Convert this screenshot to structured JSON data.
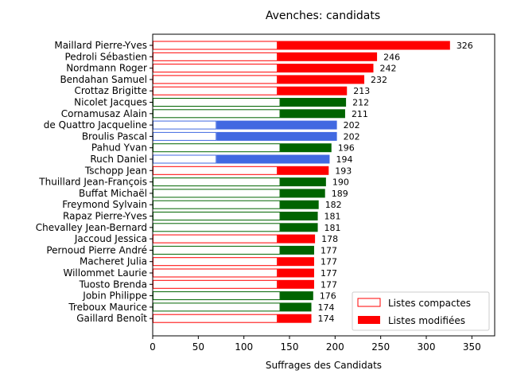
{
  "chart_data": {
    "type": "bar",
    "orientation": "horizontal-stacked",
    "title": "Avenches: candidats",
    "xlabel": "Suffrages des Candidats",
    "ylabel": "",
    "xlim": [
      0,
      375
    ],
    "x_ticks": [
      0,
      50,
      100,
      150,
      200,
      250,
      300,
      350
    ],
    "grid": false,
    "legend_position": "lower-right",
    "legend": [
      {
        "label": "Listes compactes",
        "style": "outline",
        "color": "#ff0000"
      },
      {
        "label": "Listes modifiées",
        "style": "filled",
        "color": "#ff0000"
      }
    ],
    "candidates": [
      {
        "name": "Maillard Pierre-Yves",
        "compact": 137,
        "total": 326,
        "color": "#ff0000"
      },
      {
        "name": "Pedroli Sébastien",
        "compact": 137,
        "total": 246,
        "color": "#ff0000"
      },
      {
        "name": "Nordmann Roger",
        "compact": 137,
        "total": 242,
        "color": "#ff0000"
      },
      {
        "name": "Bendahan Samuel",
        "compact": 137,
        "total": 232,
        "color": "#ff0000"
      },
      {
        "name": "Crottaz Brigitte",
        "compact": 137,
        "total": 213,
        "color": "#ff0000"
      },
      {
        "name": "Nicolet Jacques",
        "compact": 140,
        "total": 212,
        "color": "#006400"
      },
      {
        "name": "Cornamusaz Alain",
        "compact": 140,
        "total": 211,
        "color": "#006400"
      },
      {
        "name": "de Quattro Jacqueline",
        "compact": 70,
        "total": 202,
        "color": "#4169e1"
      },
      {
        "name": "Broulis Pascal",
        "compact": 70,
        "total": 202,
        "color": "#4169e1"
      },
      {
        "name": "Pahud Yvan",
        "compact": 140,
        "total": 196,
        "color": "#006400"
      },
      {
        "name": "Ruch Daniel",
        "compact": 70,
        "total": 194,
        "color": "#4169e1"
      },
      {
        "name": "Tschopp Jean",
        "compact": 137,
        "total": 193,
        "color": "#ff0000"
      },
      {
        "name": "Thuillard Jean-François",
        "compact": 140,
        "total": 190,
        "color": "#006400"
      },
      {
        "name": "Buffat Michaël",
        "compact": 140,
        "total": 189,
        "color": "#006400"
      },
      {
        "name": "Freymond Sylvain",
        "compact": 140,
        "total": 182,
        "color": "#006400"
      },
      {
        "name": "Rapaz Pierre-Yves",
        "compact": 140,
        "total": 181,
        "color": "#006400"
      },
      {
        "name": "Chevalley Jean-Bernard",
        "compact": 140,
        "total": 181,
        "color": "#006400"
      },
      {
        "name": "Jaccoud Jessica",
        "compact": 137,
        "total": 178,
        "color": "#ff0000"
      },
      {
        "name": "Pernoud Pierre André",
        "compact": 140,
        "total": 177,
        "color": "#006400"
      },
      {
        "name": "Macheret Julia",
        "compact": 137,
        "total": 177,
        "color": "#ff0000"
      },
      {
        "name": "Willommet Laurie",
        "compact": 137,
        "total": 177,
        "color": "#ff0000"
      },
      {
        "name": "Tuosto Brenda",
        "compact": 137,
        "total": 177,
        "color": "#ff0000"
      },
      {
        "name": "Jobin Philippe",
        "compact": 140,
        "total": 176,
        "color": "#006400"
      },
      {
        "name": "Treboux Maurice",
        "compact": 140,
        "total": 174,
        "color": "#006400"
      },
      {
        "name": "Gaillard Benoît",
        "compact": 137,
        "total": 174,
        "color": "#ff0000"
      }
    ]
  }
}
